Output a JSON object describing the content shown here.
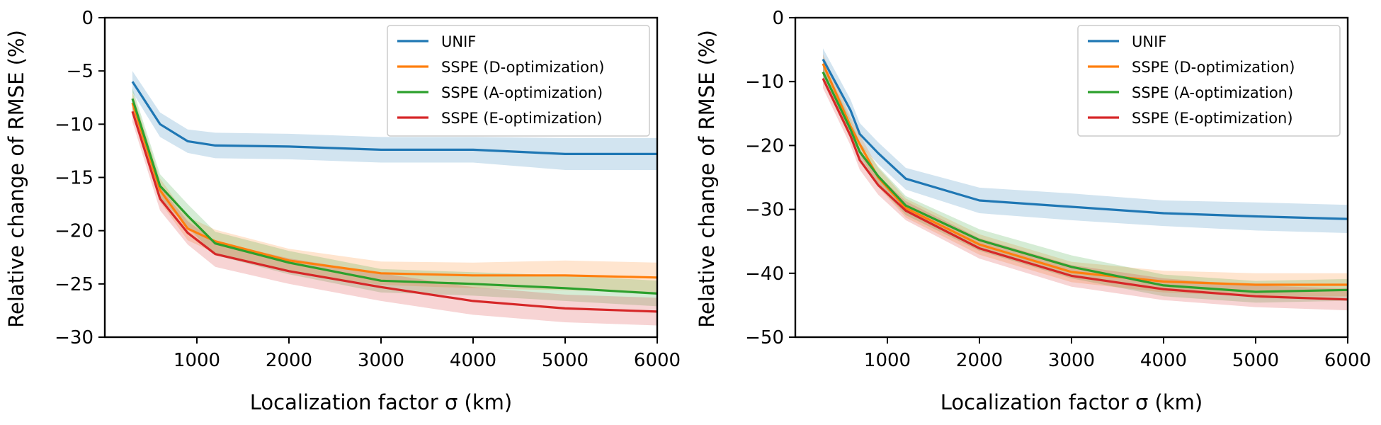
{
  "chart_data": [
    {
      "type": "line",
      "xlabel": "Localization factor σ (km)",
      "ylabel": "Relative change of RMSE (%)",
      "xlim": [
        0,
        6000
      ],
      "ylim": [
        -30,
        0
      ],
      "xticks": [
        1000,
        2000,
        3000,
        4000,
        5000,
        6000
      ],
      "yticks": [
        0,
        -5,
        -10,
        -15,
        -20,
        -25,
        -30
      ],
      "grid": false,
      "legend_position": "top-right",
      "x": [
        300,
        600,
        900,
        1200,
        2000,
        3000,
        4000,
        5000,
        6000
      ],
      "series": [
        {
          "name": "UNIF",
          "color": "#1f77b4",
          "values": [
            -6.0,
            -10.0,
            -11.6,
            -12.0,
            -12.1,
            -12.4,
            -12.4,
            -12.8,
            -12.8
          ],
          "lower": [
            -7.0,
            -11.2,
            -12.7,
            -13.2,
            -13.3,
            -13.6,
            -13.6,
            -14.3,
            -14.3
          ],
          "upper": [
            -5.0,
            -8.9,
            -10.5,
            -10.8,
            -10.9,
            -11.2,
            -11.2,
            -11.3,
            -11.3
          ]
        },
        {
          "name": "SSPE (D-optimization)",
          "color": "#ff7f0e",
          "values": [
            -8.0,
            -16.2,
            -19.8,
            -21.0,
            -22.8,
            -24.0,
            -24.2,
            -24.2,
            -24.4
          ],
          "lower": [
            -9.0,
            -17.3,
            -20.9,
            -22.1,
            -23.9,
            -25.1,
            -25.4,
            -25.6,
            -25.8
          ],
          "upper": [
            -7.0,
            -15.1,
            -18.7,
            -19.9,
            -21.7,
            -22.9,
            -23.0,
            -22.8,
            -23.0
          ]
        },
        {
          "name": "SSPE (A-optimization)",
          "color": "#2ca02c",
          "values": [
            -7.6,
            -15.8,
            -18.6,
            -21.2,
            -23.0,
            -24.7,
            -25.0,
            -25.4,
            -25.9
          ],
          "lower": [
            -8.6,
            -16.9,
            -19.7,
            -22.3,
            -24.1,
            -25.8,
            -26.1,
            -26.6,
            -27.1
          ],
          "upper": [
            -6.6,
            -14.7,
            -17.5,
            -20.1,
            -21.9,
            -23.6,
            -23.9,
            -24.2,
            -24.7
          ]
        },
        {
          "name": "SSPE (E-optimization)",
          "color": "#d62728",
          "values": [
            -8.8,
            -17.0,
            -20.2,
            -22.2,
            -23.8,
            -25.3,
            -26.6,
            -27.3,
            -27.6
          ],
          "lower": [
            -9.8,
            -18.1,
            -21.3,
            -23.4,
            -25.0,
            -26.6,
            -27.9,
            -28.6,
            -28.9
          ],
          "upper": [
            -7.8,
            -15.9,
            -19.1,
            -21.0,
            -22.6,
            -24.0,
            -25.3,
            -26.0,
            -26.3
          ]
        }
      ]
    },
    {
      "type": "line",
      "xlabel": "Localization factor σ (km)",
      "ylabel": "Relative change of RMSE (%)",
      "xlim": [
        0,
        6000
      ],
      "ylim": [
        -50,
        0
      ],
      "xticks": [
        1000,
        2000,
        3000,
        4000,
        5000,
        6000
      ],
      "yticks": [
        0,
        -10,
        -20,
        -30,
        -40,
        -50
      ],
      "grid": false,
      "legend_position": "top-right",
      "x": [
        300,
        600,
        700,
        900,
        1200,
        2000,
        3000,
        4000,
        5000,
        6000
      ],
      "series": [
        {
          "name": "UNIF",
          "color": "#1f77b4",
          "values": [
            -6.5,
            -14.5,
            -18.2,
            -21.2,
            -25.2,
            -28.6,
            -29.6,
            -30.6,
            -31.1,
            -31.5
          ],
          "lower": [
            -8.2,
            -16.2,
            -19.9,
            -22.9,
            -26.9,
            -30.6,
            -31.7,
            -32.6,
            -33.3,
            -33.7
          ],
          "upper": [
            -4.8,
            -12.8,
            -16.5,
            -19.5,
            -23.5,
            -26.6,
            -27.5,
            -28.6,
            -28.9,
            -29.3
          ]
        },
        {
          "name": "SSPE (D-optimization)",
          "color": "#ff7f0e",
          "values": [
            -7.2,
            -17.0,
            -19.8,
            -25.0,
            -29.8,
            -35.5,
            -39.8,
            -41.3,
            -41.8,
            -41.8
          ],
          "lower": [
            -8.7,
            -18.5,
            -21.3,
            -26.5,
            -31.3,
            -37.1,
            -41.4,
            -43.0,
            -43.6,
            -43.6
          ],
          "upper": [
            -5.7,
            -15.5,
            -18.3,
            -23.5,
            -28.3,
            -33.9,
            -38.2,
            -39.6,
            -40.0,
            -40.0
          ]
        },
        {
          "name": "SSPE (A-optimization)",
          "color": "#2ca02c",
          "values": [
            -8.5,
            -17.5,
            -21.0,
            -24.8,
            -29.4,
            -34.8,
            -39.0,
            -41.9,
            -42.9,
            -42.6
          ],
          "lower": [
            -10.0,
            -19.0,
            -22.5,
            -26.3,
            -30.9,
            -36.5,
            -40.8,
            -43.6,
            -44.6,
            -44.3
          ],
          "upper": [
            -7.0,
            -16.0,
            -19.5,
            -23.3,
            -27.9,
            -33.1,
            -37.2,
            -40.2,
            -41.2,
            -40.9
          ]
        },
        {
          "name": "SSPE (E-optimization)",
          "color": "#d62728",
          "values": [
            -9.5,
            -18.5,
            -22.3,
            -26.2,
            -30.2,
            -36.1,
            -40.4,
            -42.5,
            -43.6,
            -44.1
          ],
          "lower": [
            -11.0,
            -20.0,
            -23.8,
            -27.7,
            -31.7,
            -37.7,
            -42.1,
            -44.2,
            -45.3,
            -45.8
          ],
          "upper": [
            -8.0,
            -17.0,
            -20.8,
            -24.7,
            -28.7,
            -34.5,
            -38.7,
            -40.8,
            -41.9,
            -42.4
          ]
        }
      ]
    }
  ]
}
